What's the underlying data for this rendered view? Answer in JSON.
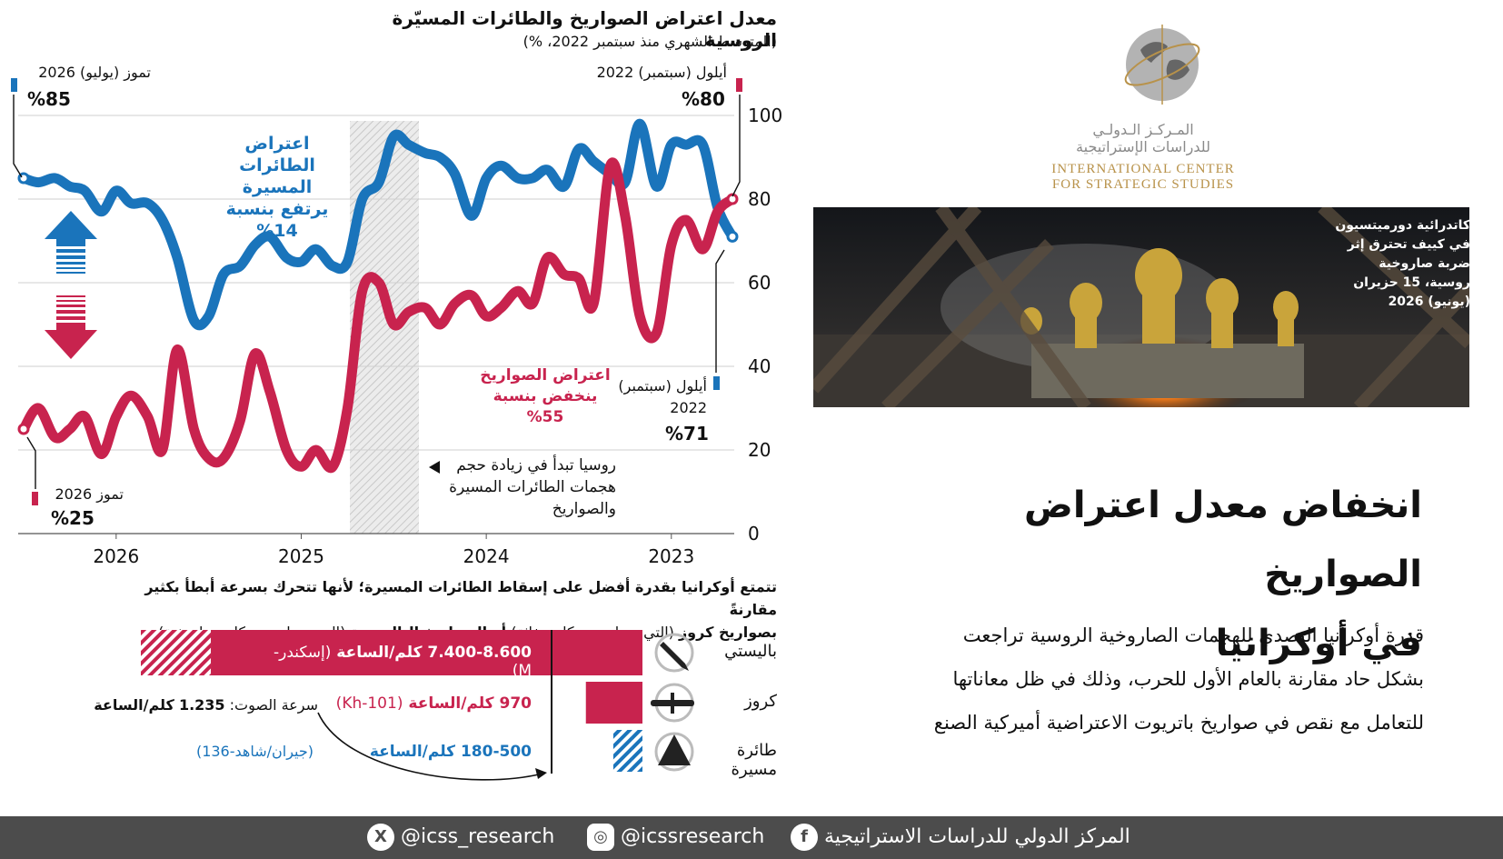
{
  "chart_data": [
    {
      "type": "line",
      "title": "معدل اعتراض الصواريخ والطائرات المسيّرة الروسية",
      "subtitle": "(المتوسط الشهري منذ سبتمبر 2022، %)",
      "x_tick_labels": [
        "2023",
        "2024",
        "2025",
        "2026"
      ],
      "x_order": "right-to-left",
      "ylim": [
        0,
        100
      ],
      "y_ticks": [
        0,
        20,
        40,
        60,
        80,
        100
      ],
      "grid": true,
      "shaded_period": "late 2024 - early 2025",
      "series": [
        {
          "name": "drones",
          "color": "#1a74bb",
          "points": [
            [
              2022.67,
              71
            ],
            [
              2022.75,
              78
            ],
            [
              2022.83,
              93
            ],
            [
              2022.92,
              93
            ],
            [
              2023.0,
              93
            ],
            [
              2023.08,
              83
            ],
            [
              2023.17,
              98
            ],
            [
              2023.25,
              84
            ],
            [
              2023.33,
              86
            ],
            [
              2023.42,
              89
            ],
            [
              2023.5,
              92
            ],
            [
              2023.58,
              83
            ],
            [
              2023.67,
              87
            ],
            [
              2023.75,
              85
            ],
            [
              2023.83,
              85
            ],
            [
              2023.92,
              88
            ],
            [
              2024.0,
              85
            ],
            [
              2024.08,
              76
            ],
            [
              2024.17,
              86
            ],
            [
              2024.25,
              90
            ],
            [
              2024.33,
              91
            ],
            [
              2024.42,
              93
            ],
            [
              2024.5,
              95
            ],
            [
              2024.58,
              84
            ],
            [
              2024.67,
              80
            ],
            [
              2024.75,
              65
            ],
            [
              2024.83,
              64
            ],
            [
              2024.92,
              68
            ],
            [
              2025.0,
              65
            ],
            [
              2025.08,
              66
            ],
            [
              2025.17,
              71
            ],
            [
              2025.25,
              69
            ],
            [
              2025.33,
              64
            ],
            [
              2025.42,
              62
            ],
            [
              2025.5,
              52
            ],
            [
              2025.58,
              51
            ],
            [
              2025.67,
              66
            ],
            [
              2025.75,
              75
            ],
            [
              2025.83,
              79
            ],
            [
              2025.92,
              79
            ],
            [
              2026.0,
              82
            ],
            [
              2026.08,
              77
            ],
            [
              2026.17,
              82
            ],
            [
              2026.25,
              83
            ],
            [
              2026.33,
              85
            ],
            [
              2026.42,
              84
            ],
            [
              2026.5,
              85
            ]
          ]
        },
        {
          "name": "missiles",
          "color": "#c8234e",
          "points": [
            [
              2022.67,
              80
            ],
            [
              2022.75,
              77
            ],
            [
              2022.83,
              68
            ],
            [
              2022.92,
              75
            ],
            [
              2023.0,
              69
            ],
            [
              2023.08,
              48
            ],
            [
              2023.17,
              52
            ],
            [
              2023.25,
              76
            ],
            [
              2023.33,
              88
            ],
            [
              2023.42,
              55
            ],
            [
              2023.5,
              61
            ],
            [
              2023.58,
              62
            ],
            [
              2023.67,
              66
            ],
            [
              2023.75,
              55
            ],
            [
              2023.83,
              58
            ],
            [
              2023.92,
              54
            ],
            [
              2024.0,
              52
            ],
            [
              2024.08,
              57
            ],
            [
              2024.17,
              55
            ],
            [
              2024.25,
              50
            ],
            [
              2024.33,
              54
            ],
            [
              2024.42,
              53
            ],
            [
              2024.5,
              50
            ],
            [
              2024.58,
              60
            ],
            [
              2024.67,
              58
            ],
            [
              2024.75,
              30
            ],
            [
              2024.83,
              16
            ],
            [
              2024.92,
              20
            ],
            [
              2025.0,
              16
            ],
            [
              2025.08,
              20
            ],
            [
              2025.17,
              34
            ],
            [
              2025.25,
              43
            ],
            [
              2025.33,
              27
            ],
            [
              2025.42,
              18
            ],
            [
              2025.5,
              18
            ],
            [
              2025.58,
              25
            ],
            [
              2025.67,
              44
            ],
            [
              2025.75,
              20
            ],
            [
              2025.83,
              28
            ],
            [
              2025.92,
              33
            ],
            [
              2026.0,
              28
            ],
            [
              2026.08,
              19
            ],
            [
              2026.17,
              28
            ],
            [
              2026.25,
              25
            ],
            [
              2026.33,
              23
            ],
            [
              2026.42,
              30
            ],
            [
              2026.5,
              25
            ]
          ]
        }
      ],
      "annotations": {
        "top_left_date": "تموز (يوليو) 2026",
        "top_left_value": "%85",
        "top_right_date": "أيلول (سبتمبر) 2022",
        "top_right_value": "%80",
        "drone_label": [
          "اعتراض الطائرات",
          "المسيرة",
          "يرتفع بنسبة"
        ],
        "drone_pct": "%14",
        "missile_label": [
          "اعتراض الصواريخ",
          "ينخفض بنسبة"
        ],
        "missile_pct": "%55",
        "bottom_right_date": [
          "أيلول (سبتمبر)",
          "2022"
        ],
        "bottom_right_value": "%71",
        "bottom_left_date": "تموز 2026",
        "bottom_left_value": "%25",
        "russia_note": [
          "روسيا تبدأ في زيادة حجم",
          "هجمات الطائرات المسيرة",
          "والصواريخ"
        ]
      }
    },
    {
      "type": "bar",
      "orientation": "horizontal",
      "categories": [
        "باليستي",
        "كروز",
        "طائرة مسيرة"
      ],
      "values": [
        8600,
        970,
        500
      ],
      "ranges": [
        [
          7400,
          8600
        ],
        [
          970,
          970
        ],
        [
          180,
          500
        ]
      ],
      "units": "كلم/الساعة",
      "reference_line": {
        "label": "سرعة الصوت:",
        "value_text": "1.235",
        "unit": "كلم/الساعة"
      },
      "bar_labels": [
        "7.400-8.600 كلم/الساعة",
        "970 كلم/الساعة",
        "180-500 كلم/الساعة"
      ],
      "bar_models": [
        "(إسكندر-M)",
        "(Kh-101)",
        "(جيران/شاهد-136)"
      ],
      "colors": [
        "#c8234e",
        "#c8234e",
        "#1a74bb"
      ]
    }
  ],
  "speed_header": {
    "line1": "تتمتع أوكرانيا بقدرة أفضل على إسقاط الطائرات المسيرة؛ لأنها تتحرك بسرعة أبطأ بكثير مقارنةً",
    "line2_a": "بصواريخ كروز",
    "line2_b": " (التي تعمل بمحركات نفاثة) ",
    "line2_c": "أو الصواريخ الباليستية",
    "line2_d": " (التي تعمل بمحركات صاروخية)"
  },
  "logo": {
    "arabic": [
      "المـركـز الـدولـي",
      "للدراسات الإستراتيجية"
    ],
    "english": [
      "INTERNATIONAL CENTER",
      "FOR STRATEGIC STUDIES"
    ]
  },
  "photo_caption": [
    "كاتدرائية دورميتسيون",
    "في كييف تحترق إثر",
    "ضربة صاروخية",
    "روسية، 15 حزيران",
    "(يونيو) 2026"
  ],
  "headline": [
    "انخفاض معدل اعتراض الصواريخ",
    "في أوكرانيا"
  ],
  "lead": [
    "قدرة أوكرانيا التصدي للهجمات الصاروخية الروسية تراجعت",
    "بشكل حاد مقارنة بالعام الأول للحرب، وذلك في ظل معاناتها",
    "للتعامل مع نقص في صواريخ باتريوت الاعتراضية أميركية الصنع"
  ],
  "footer": {
    "x_handle": "@icss_research",
    "instagram_handle": "@icssresearch",
    "facebook_name": "المركز الدولي للدراسات الاستراتيجية",
    "x_icon": "x-icon",
    "instagram_icon": "instagram-icon",
    "facebook_icon": "facebook-icon"
  }
}
